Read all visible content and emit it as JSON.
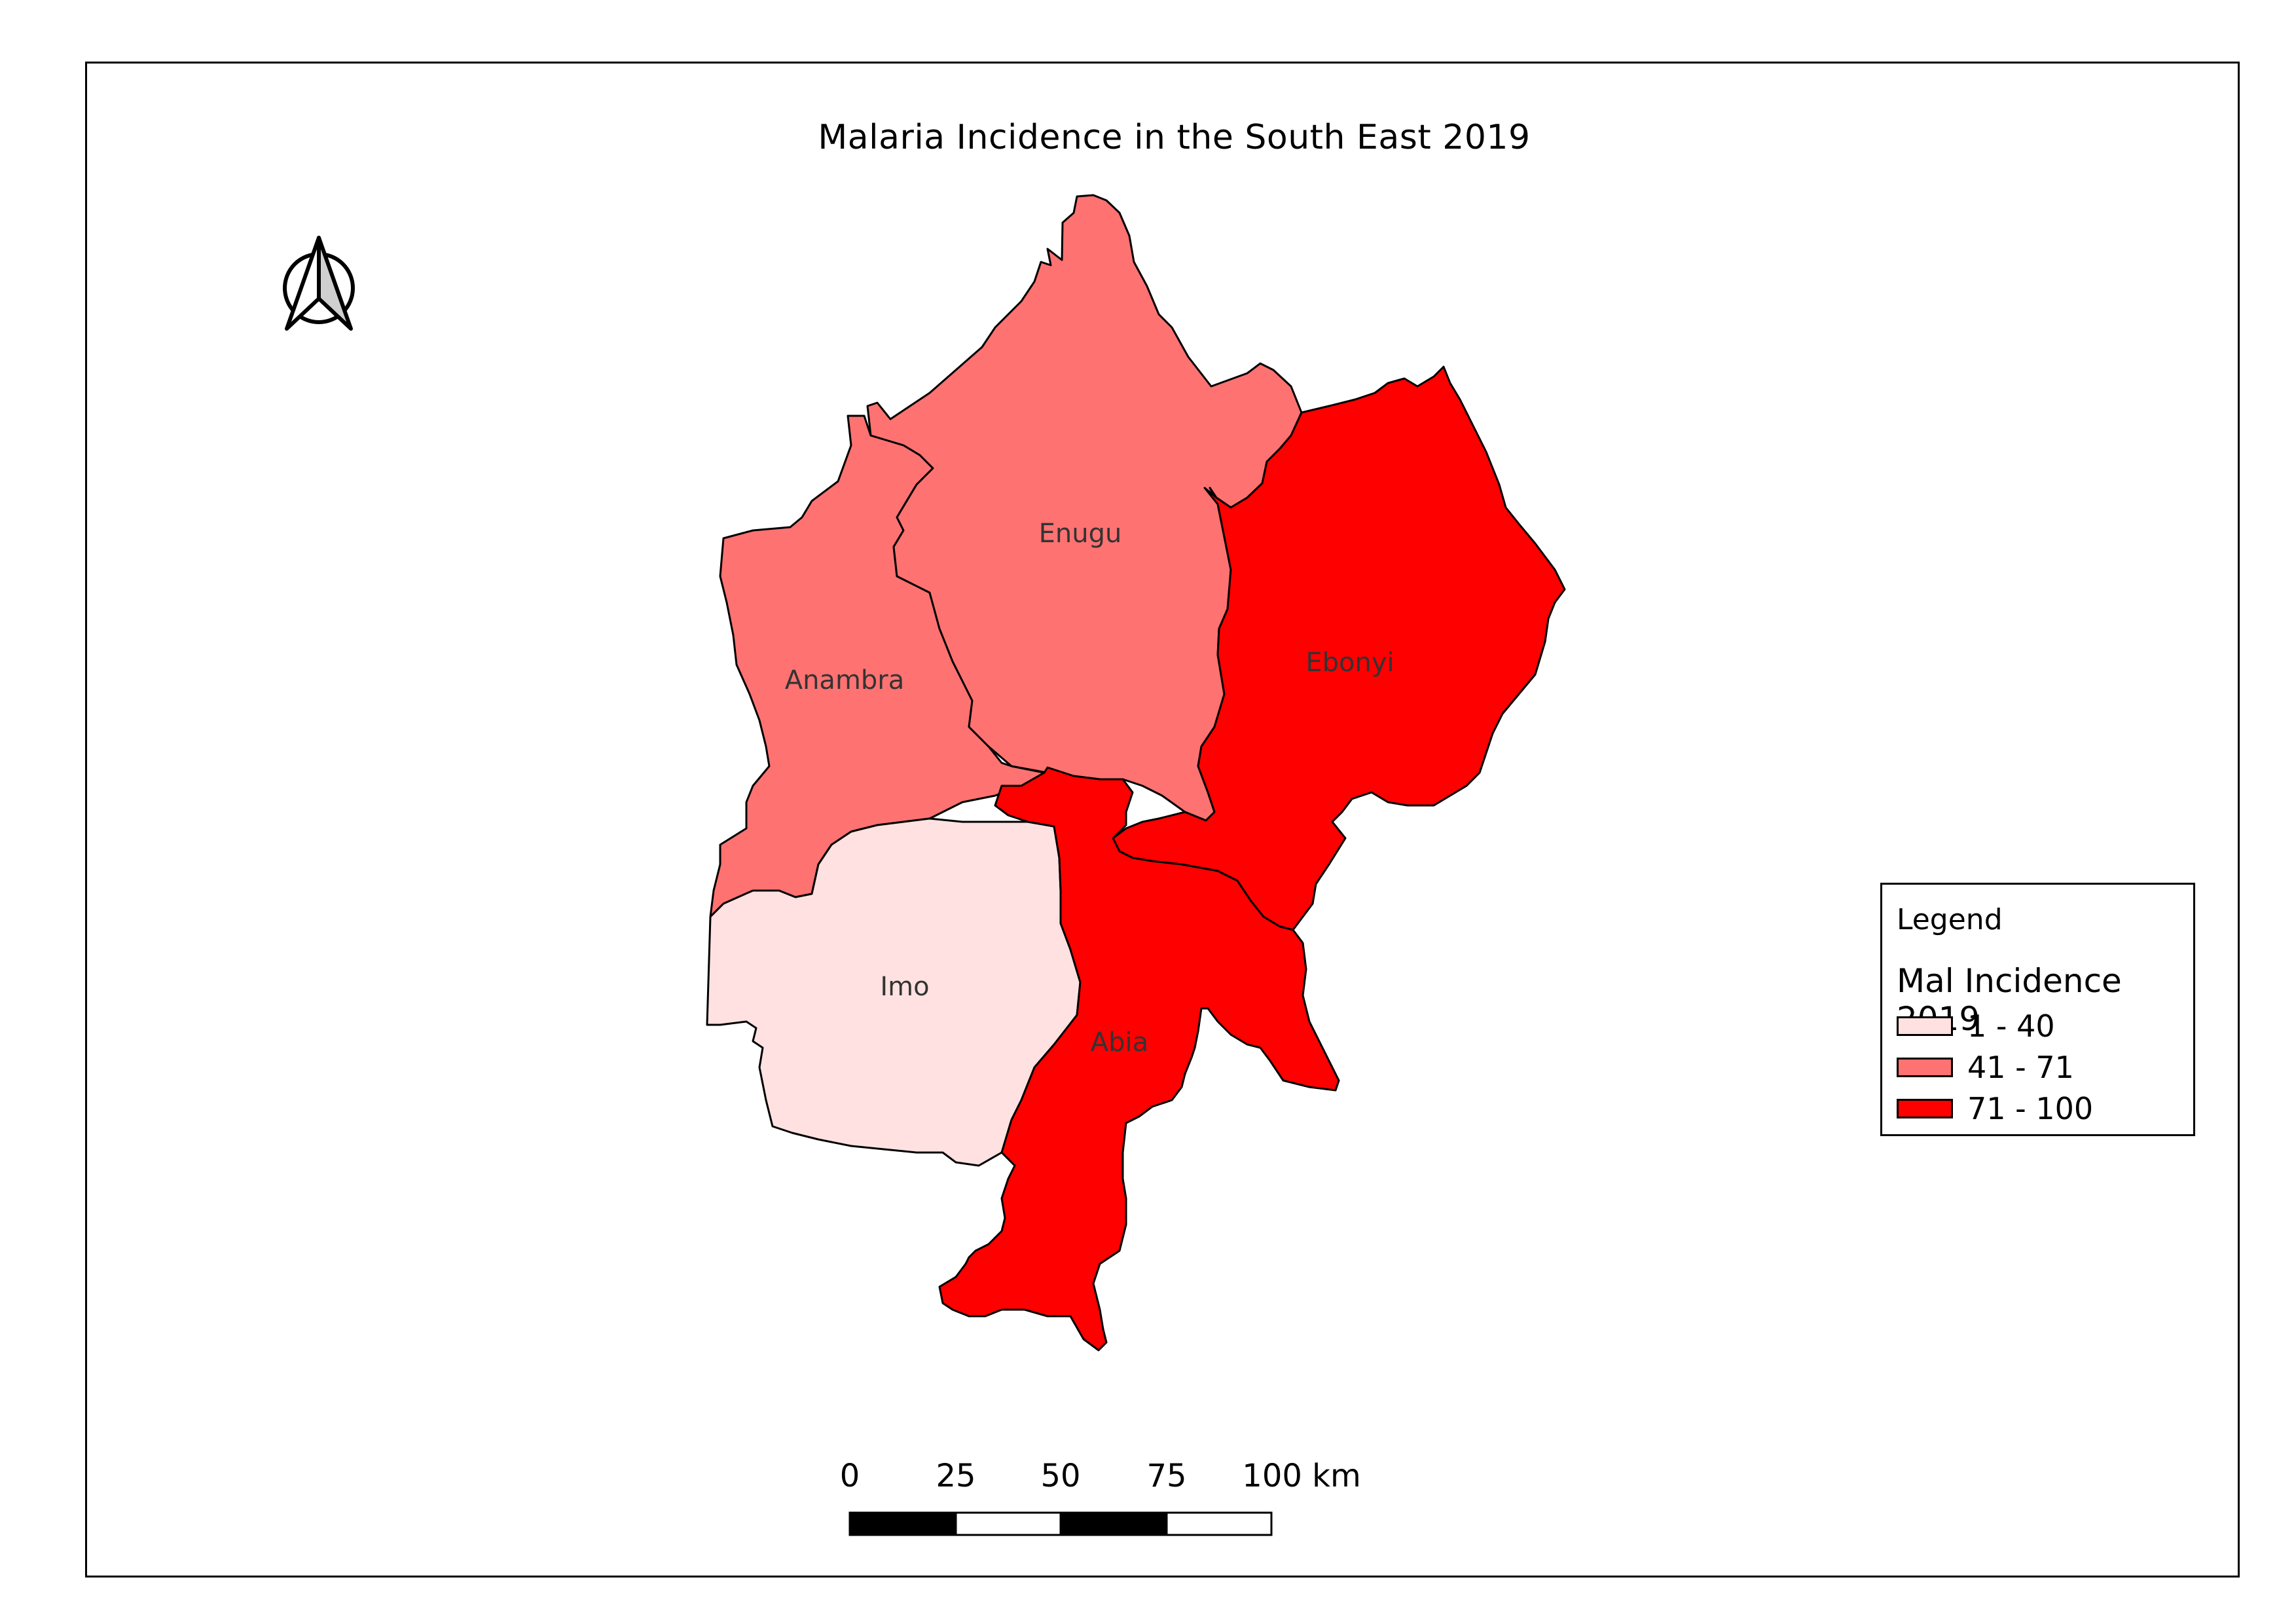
{
  "map": {
    "title": "Malaria Incidence in the South East 2019",
    "regions": [
      {
        "id": "anambra",
        "name": "Anambra",
        "incidence_class": "41 - 71",
        "fill": "#ff7272"
      },
      {
        "id": "enugu",
        "name": "Enugu",
        "incidence_class": "41 - 71",
        "fill": "#ff7272"
      },
      {
        "id": "ebonyi",
        "name": "Ebonyi",
        "incidence_class": "71 - 100",
        "fill": "#ff0000"
      },
      {
        "id": "imo",
        "name": "Imo",
        "incidence_class": "1 - 40",
        "fill": "#ffe1e1"
      },
      {
        "id": "abia",
        "name": "Abia",
        "incidence_class": "71 - 100",
        "fill": "#ff0000"
      }
    ]
  },
  "legend": {
    "title": "Legend",
    "subtitle": "Mal Incidence 2019",
    "items": [
      {
        "label": "1 - 40",
        "color": "#ffe1e1"
      },
      {
        "label": "41 - 71",
        "color": "#ff7272"
      },
      {
        "label": "71 - 100",
        "color": "#ff0000"
      }
    ]
  },
  "scale_bar": {
    "labels": [
      "0",
      "25",
      "50",
      "75",
      "100 km"
    ]
  },
  "north_arrow": {
    "icon": "north-arrow-icon"
  }
}
